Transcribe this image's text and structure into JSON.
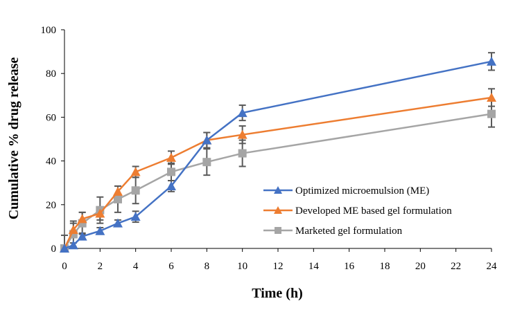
{
  "chart_data": {
    "type": "line",
    "title": "",
    "xlabel": "Time (h)",
    "ylabel": "Cumulative % drug release",
    "xlim": [
      0,
      24
    ],
    "ylim": [
      0,
      100
    ],
    "x_ticks": [
      0,
      2,
      4,
      6,
      8,
      10,
      12,
      14,
      16,
      18,
      20,
      22,
      24
    ],
    "y_ticks": [
      0,
      20,
      40,
      60,
      80,
      100
    ],
    "grid": false,
    "legend_position": "bottom-right",
    "x": [
      0,
      0.5,
      1,
      2,
      3,
      4,
      6,
      8,
      10,
      24
    ],
    "series": [
      {
        "name": "Optimized microemulsion (ME)",
        "color": "#4472C4",
        "marker": "triangle",
        "values": [
          0,
          1.5,
          5.5,
          8,
          11.5,
          14.5,
          28.5,
          49.5,
          62,
          85.5
        ],
        "errors": [
          0,
          1,
          1.5,
          1.5,
          1.5,
          2.5,
          2.5,
          3.5,
          3.5,
          4
        ]
      },
      {
        "name": "Developed ME based gel formulation",
        "color": "#ED7D31",
        "marker": "triangle",
        "values": [
          0,
          8.5,
          13.5,
          16,
          26,
          35,
          41.5,
          49.5,
          52,
          69
        ],
        "errors": [
          0,
          3,
          3,
          3,
          2.5,
          2.5,
          3,
          3.5,
          4,
          4
        ]
      },
      {
        "name": "Marketed gel formulation",
        "color": "#A5A5A5",
        "marker": "square",
        "values": [
          0,
          6.5,
          11.5,
          17.5,
          22.5,
          26.5,
          35,
          39.5,
          43.5,
          61.5
        ],
        "errors": [
          6,
          6,
          5,
          6,
          6,
          6,
          4,
          6,
          6,
          6
        ]
      }
    ]
  }
}
